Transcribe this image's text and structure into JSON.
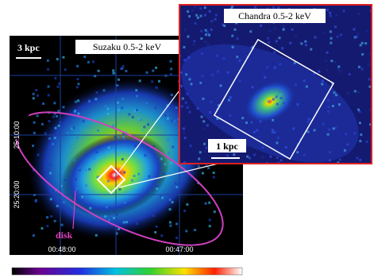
{
  "left_panel": {
    "label": "Suzaku 0.5-2 keV",
    "scale_bar": "3 kpc",
    "annotation": "disk",
    "x_ticks": [
      "00:48:00",
      "00:47:00"
    ],
    "y_ticks": [
      "25:10:00",
      "25:20:00"
    ]
  },
  "inset_panel": {
    "label": "Chandra 0.5-2 keV",
    "scale_bar": "1 kpc"
  }
}
